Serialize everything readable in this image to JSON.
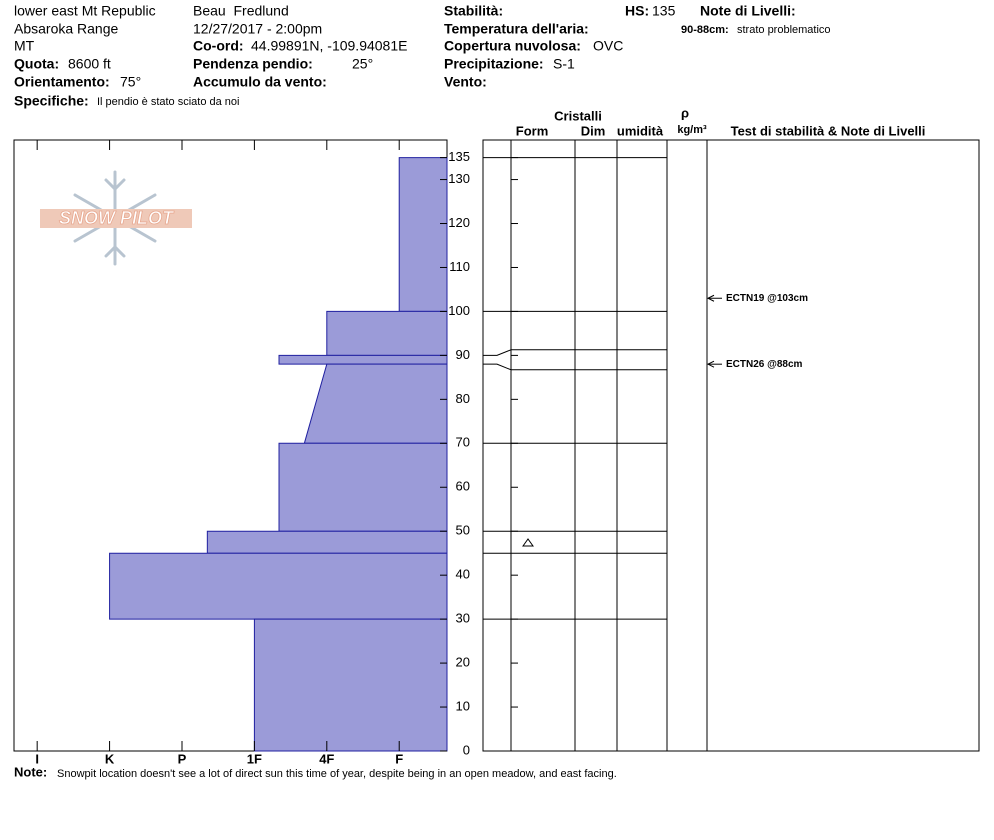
{
  "header": {
    "location": "lower east Mt Republic",
    "range": "Absaroka Range",
    "state": "MT",
    "quota_label": "Quota:",
    "quota": "8600 ft",
    "aspect_label": "Orientamento:",
    "aspect": "75°",
    "specifics_label": "Specifiche:",
    "specifics": "Il pendio è stato sciato da noi",
    "observer": "Beau  Fredlund",
    "datetime": "12/27/2017 - 2:00pm",
    "coord_label": "Co-ord:",
    "coord": "44.99891N, -109.94081E",
    "slope_label": "Pendenza pendio:",
    "slope": "25°",
    "wind_loading_label": "Accumulo da vento:",
    "stability_label": "Stabilità:",
    "air_temp_label": "Temperatura dell'aria:",
    "sky_label": "Copertura nuvolosa:",
    "sky": "OVC",
    "precip_label": "Precipitazione:",
    "precip": "S-1",
    "wind_label": "Vento:",
    "hs_label": "HS:",
    "hs": "135",
    "layer_notes_label": "Note di Livelli:",
    "layer_note_depth": "90-88cm:",
    "layer_note": "strato problematico"
  },
  "logo_text": "SNOW PILOT",
  "columns": {
    "crystals": "Cristalli",
    "form": "Form",
    "dim": "Dim",
    "moisture": "umidità",
    "rho": "ρ",
    "density_unit": "kg/m³",
    "tests": "Test di stabilità & Note di Livelli"
  },
  "chart_data": {
    "type": "snow_profile",
    "ylim": [
      0,
      139
    ],
    "yticks": [
      0,
      10,
      20,
      30,
      40,
      50,
      60,
      70,
      80,
      90,
      100,
      110,
      120,
      130,
      135
    ],
    "xlim": [
      0.68,
      6.66
    ],
    "xticks": [
      {
        "value": 1,
        "label": "I"
      },
      {
        "value": 2,
        "label": "K"
      },
      {
        "value": 3,
        "label": "P"
      },
      {
        "value": 4,
        "label": "1F"
      },
      {
        "value": 5,
        "label": "4F"
      },
      {
        "value": 6,
        "label": "F"
      }
    ],
    "color": "#9b9bd8",
    "layers": [
      {
        "top": 135,
        "bottom": 100,
        "hardness": 6
      },
      {
        "top": 100,
        "bottom": 90,
        "hardness": 5
      },
      {
        "top": 90,
        "bottom": 88,
        "hardness": 4.34
      },
      {
        "top": 88,
        "bottom": 70,
        "hardness": 5,
        "hardness_bottom": 4.69
      },
      {
        "top": 70,
        "bottom": 50,
        "hardness": 4.34
      },
      {
        "top": 50,
        "bottom": 45,
        "hardness": 3.35
      },
      {
        "top": 45,
        "bottom": 30,
        "hardness": 2
      },
      {
        "top": 30,
        "bottom": 0,
        "hardness": 4
      }
    ],
    "tests": [
      {
        "label": "ECTN19 @103cm",
        "depth": 103
      },
      {
        "label": "ECTN26 @88cm",
        "depth": 88
      }
    ]
  },
  "note": {
    "label": "Note:",
    "text": "Snowpit location doesn't see a lot of direct sun this time of year, despite being in an open meadow, and east facing."
  }
}
